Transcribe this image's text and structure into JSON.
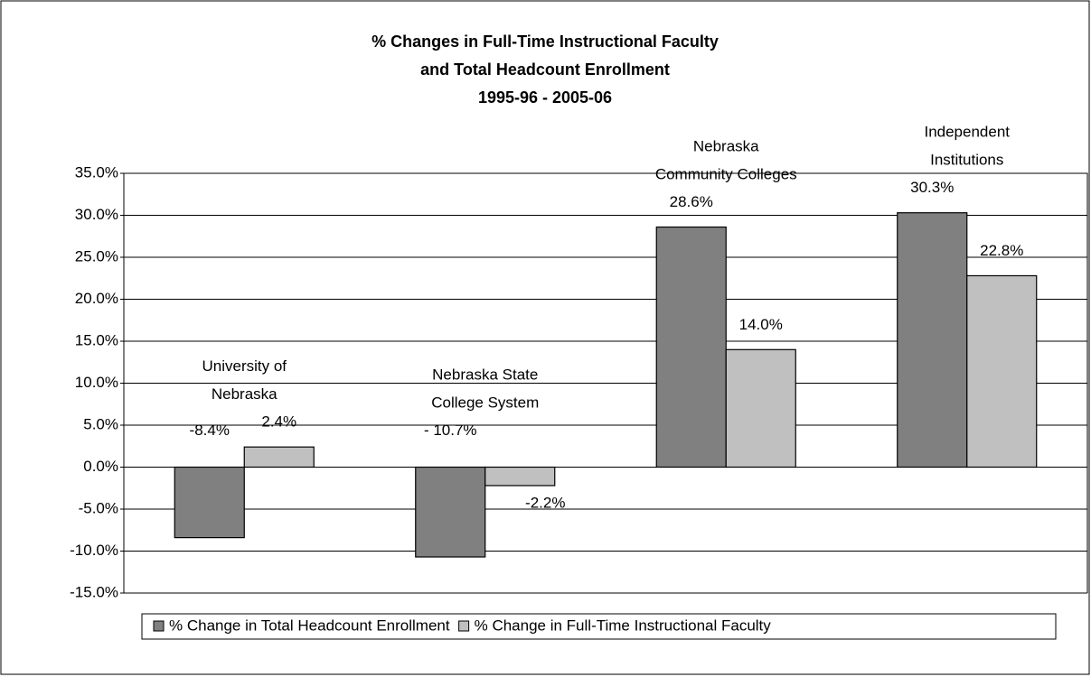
{
  "chart_data": {
    "type": "bar",
    "title": "% Changes in Full-Time Instructional Faculty\nand Total Headcount Enrollment\n1995-96 - 2005-06",
    "categories": [
      "University of\nNebraska",
      "Nebraska State\nCollege System",
      "Nebraska\nCommunity Colleges",
      "Independent\nInstitutions"
    ],
    "series": [
      {
        "name": "% Change in Total Headcount Enrollment",
        "color": "#808080",
        "values": [
          -8.4,
          -10.7,
          28.6,
          30.3
        ],
        "value_labels": [
          "-8.4%",
          "- 10.7%",
          "28.6%",
          "30.3%"
        ]
      },
      {
        "name": "% Change in Full-Time Instructional Faculty",
        "color": "#c0c0c0",
        "values": [
          2.4,
          -2.2,
          14.0,
          22.8
        ],
        "value_labels": [
          "2.4%",
          "-2.2%",
          "14.0%",
          "22.8%"
        ]
      }
    ],
    "ylim": [
      -15,
      35
    ],
    "yticks": [
      {
        "value": -15,
        "label": "-15.0%"
      },
      {
        "value": -10,
        "label": "-10.0%"
      },
      {
        "value": -5,
        "label": "-5.0%"
      },
      {
        "value": 0,
        "label": "0.0%"
      },
      {
        "value": 5,
        "label": "5.0%"
      },
      {
        "value": 10,
        "label": "10.0%"
      },
      {
        "value": 15,
        "label": "15.0%"
      },
      {
        "value": 20,
        "label": "20.0%"
      },
      {
        "value": 25,
        "label": "25.0%"
      },
      {
        "value": 30,
        "label": "30.0%"
      },
      {
        "value": 35,
        "label": "35.0%"
      }
    ],
    "grid": true,
    "legend": "bottom"
  }
}
